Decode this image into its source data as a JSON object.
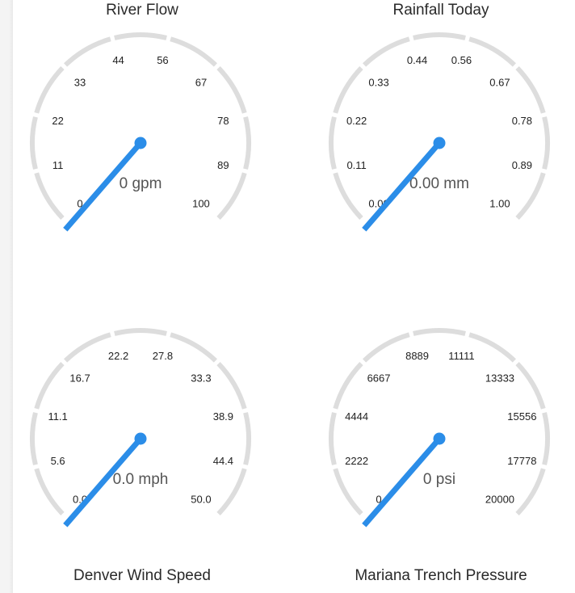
{
  "gauges": [
    {
      "id": "river-flow",
      "title": "River Flow",
      "title_position": "top",
      "value_text": "0 gpm",
      "value": 0,
      "min": 0,
      "max": 100,
      "ticks": [
        "0",
        "11",
        "22",
        "33",
        "44",
        "56",
        "67",
        "78",
        "89",
        "100"
      ],
      "needle_color": "#2b8de8",
      "track_color": "#dddddd"
    },
    {
      "id": "rainfall-today",
      "title": "Rainfall Today",
      "title_position": "top",
      "value_text": "0.00 mm",
      "value": 0,
      "min": 0,
      "max": 1,
      "ticks": [
        "0.00",
        "0.11",
        "0.22",
        "0.33",
        "0.44",
        "0.56",
        "0.67",
        "0.78",
        "0.89",
        "1.00"
      ],
      "needle_color": "#2b8de8",
      "track_color": "#dddddd"
    },
    {
      "id": "denver-wind-speed",
      "title": "Denver Wind Speed",
      "title_position": "bottom",
      "value_text": "0.0 mph",
      "value": 0,
      "min": 0,
      "max": 50,
      "ticks": [
        "0.0",
        "5.6",
        "11.1",
        "16.7",
        "22.2",
        "27.8",
        "33.3",
        "38.9",
        "44.4",
        "50.0"
      ],
      "needle_color": "#2b8de8",
      "track_color": "#dddddd"
    },
    {
      "id": "mariana-trench-pressure",
      "title": "Mariana Trench Pressure",
      "title_position": "bottom",
      "value_text": "0 psi",
      "value": 0,
      "min": 0,
      "max": 20000,
      "ticks": [
        "0",
        "2222",
        "4444",
        "6667",
        "8889",
        "11111",
        "13333",
        "15556",
        "17778",
        "20000"
      ],
      "needle_color": "#2b8de8",
      "track_color": "#dddddd"
    }
  ]
}
